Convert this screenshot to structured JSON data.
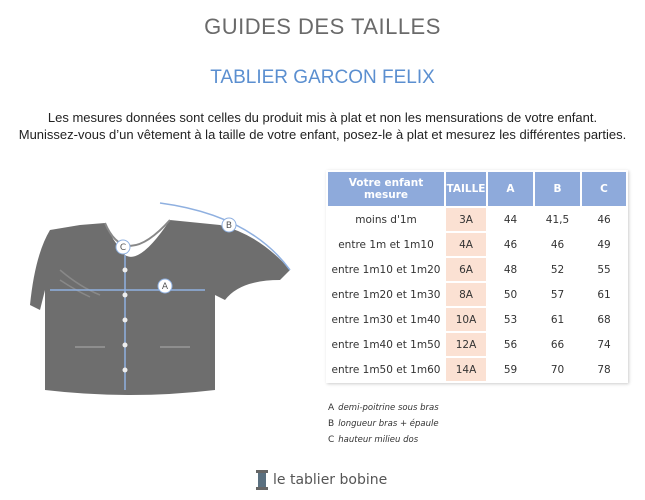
{
  "title": "GUIDES DES TAILLES",
  "subtitle": "TABLIER GARCON FELIX",
  "intro": [
    "Les mesures données sont celles du produit mis à plat et non les mensurations de votre enfant.",
    "Munissez-vous d’un vêtement à la taille de votre enfant, posez-le à plat et mesurez les différentes parties."
  ],
  "table": {
    "headers": [
      "Votre enfant mesure",
      "TAILLE",
      "A",
      "B",
      "C"
    ],
    "rows": [
      [
        "moins d'1m",
        "3A",
        "44",
        "41,5",
        "46"
      ],
      [
        "entre 1m et 1m10",
        "4A",
        "46",
        "46",
        "49"
      ],
      [
        "entre 1m10 et 1m20",
        "6A",
        "48",
        "52",
        "55"
      ],
      [
        "entre 1m20 et 1m30",
        "8A",
        "50",
        "57",
        "61"
      ],
      [
        "entre 1m30 et 1m40",
        "10A",
        "53",
        "61",
        "68"
      ],
      [
        "entre 1m40 et 1m50",
        "12A",
        "56",
        "66",
        "74"
      ],
      [
        "entre 1m50 et 1m60",
        "14A",
        "59",
        "70",
        "78"
      ]
    ]
  },
  "diagram_labels": [
    "A",
    "B",
    "C"
  ],
  "legend": [
    {
      "key": "A",
      "text": "demi-poitrine sous bras"
    },
    {
      "key": "B",
      "text": "longueur bras + épaule"
    },
    {
      "key": "C",
      "text": "hauteur milieu dos"
    }
  ],
  "logo": "le tablier bobine",
  "colors": {
    "header": "#8eaadb",
    "taille": "#fbe1d3",
    "subtitle": "#5b8fd0",
    "jacket": "#6e6e6e",
    "measure": "#8fb0e0"
  }
}
